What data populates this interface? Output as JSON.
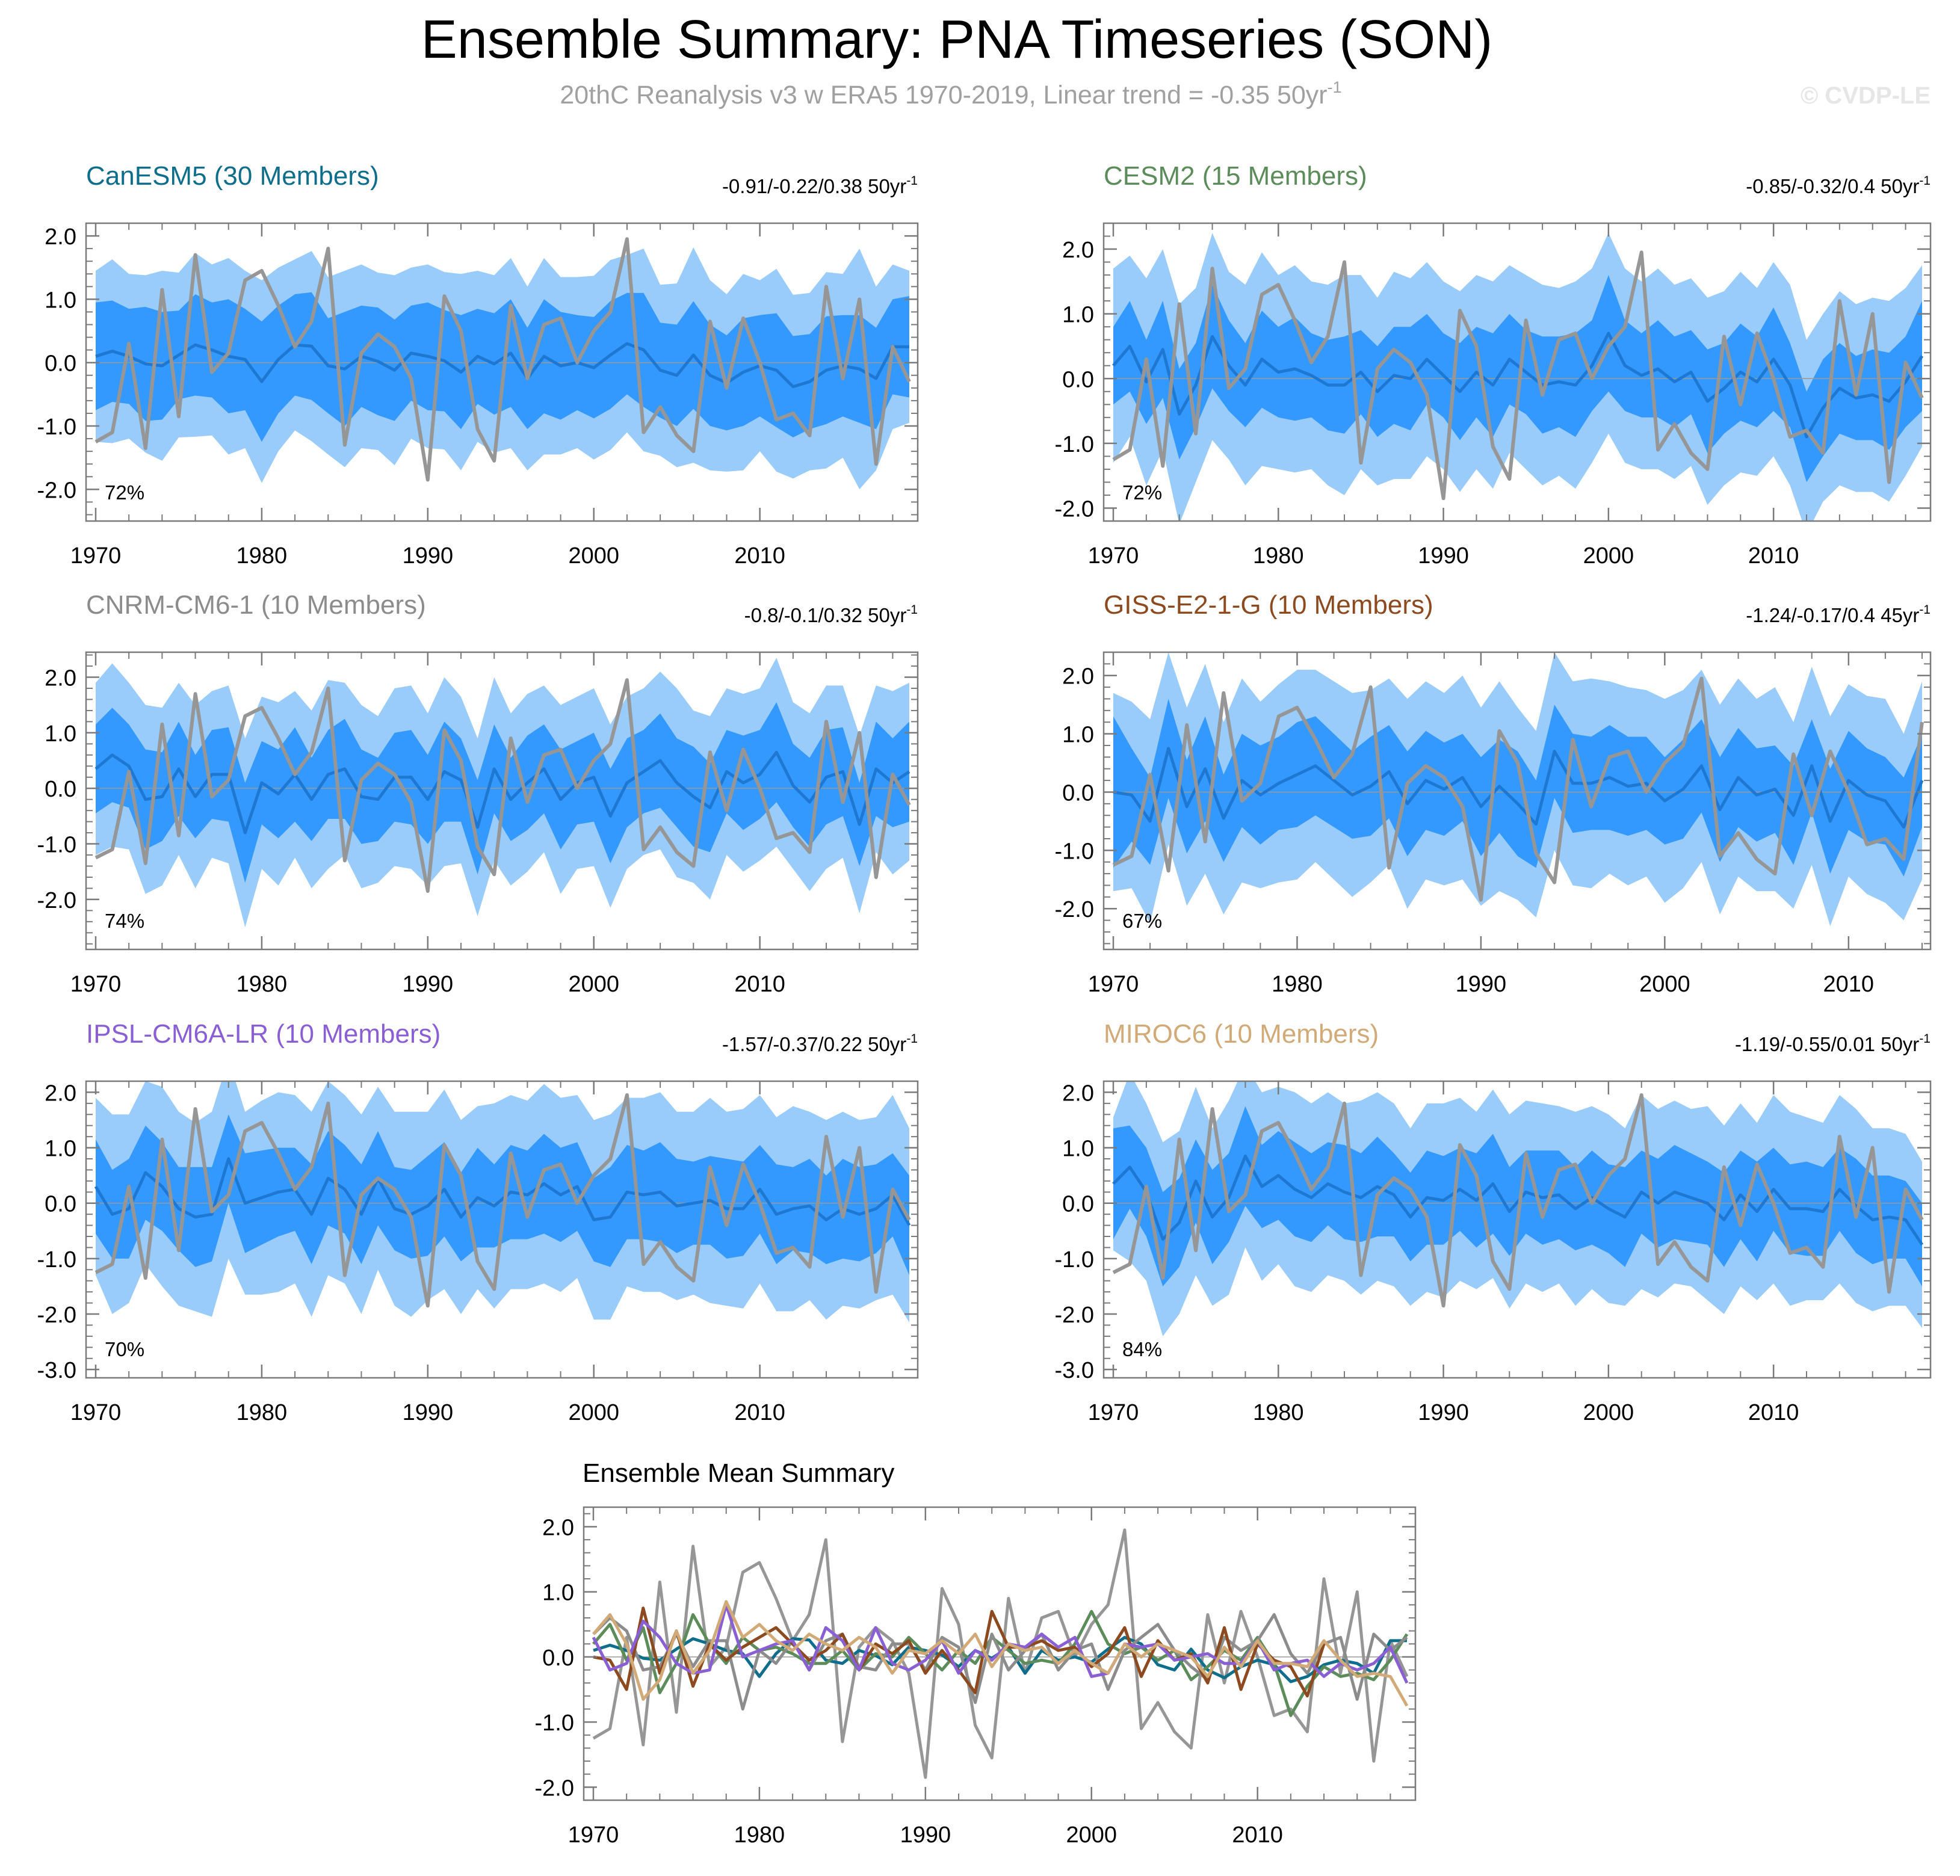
{
  "header": {
    "title": "Ensemble Summary: PNA Timeseries (SON)",
    "subtitle": "20thC Reanalysis v3 w ERA5 1970-2019, Linear trend = -0.35 50yr",
    "subtitle_sup": "-1",
    "watermark": "© CVDP-LE"
  },
  "colors": {
    "band_outer": "#99ccfa",
    "band_inner": "#3399ff",
    "ens_mean_line": "#1e78d2",
    "obs_line": "#969696",
    "zero_line": "#999999",
    "frame": "#7a7a7a"
  },
  "obs": {
    "name": "20thC Reanalysis v3 w ERA5",
    "values": [
      -1.25,
      -1.1,
      0.3,
      -1.35,
      1.15,
      -0.85,
      1.7,
      -0.15,
      0.15,
      1.3,
      1.45,
      0.9,
      0.25,
      0.65,
      1.8,
      -1.3,
      0.15,
      0.45,
      0.25,
      -0.25,
      -1.85,
      1.05,
      0.5,
      -1.05,
      -1.55,
      0.9,
      -0.25,
      0.6,
      0.7,
      0.0,
      0.5,
      0.8,
      1.95,
      -1.1,
      -0.7,
      -1.15,
      -1.4,
      0.65,
      -0.4,
      0.7,
      0.0,
      -0.9,
      -0.8,
      -1.15,
      1.2,
      -0.25,
      1.0,
      -1.6,
      0.25,
      -0.3
    ]
  },
  "chart_data": [
    {
      "type": "area",
      "model": "CanESM5",
      "title": "CanESM5 (30 Members)",
      "title_color": "#0e6e8c",
      "trend_text": "-0.91/-0.22/0.38 50yr",
      "trend_sup": "-1",
      "pct": "72%",
      "x_start": 1970,
      "x_end": 2019,
      "ylim": [
        -2.5,
        2.2
      ],
      "yticks": [
        2.0,
        1.0,
        0.0,
        -1.0,
        -2.0
      ],
      "ytick_labels": [
        "2.0",
        "1.0",
        "0.0",
        "-1.0",
        "-2.0"
      ],
      "xticks": [
        1970,
        1980,
        1990,
        2000,
        2010
      ],
      "ens_mean": [
        0.1,
        0.18,
        0.1,
        -0.02,
        -0.05,
        0.12,
        0.28,
        0.2,
        0.1,
        0.05,
        -0.3,
        0.05,
        0.28,
        0.26,
        -0.05,
        -0.1,
        0.1,
        0.02,
        -0.12,
        0.15,
        0.1,
        0.03,
        -0.15,
        0.1,
        -0.02,
        0.15,
        -0.25,
        0.1,
        -0.05,
        0.0,
        -0.08,
        0.12,
        0.3,
        0.2,
        -0.12,
        -0.2,
        0.12,
        -0.2,
        -0.32,
        -0.15,
        -0.05,
        -0.12,
        -0.38,
        -0.3,
        -0.12,
        -0.05,
        -0.1,
        -0.25,
        0.25,
        0.25
      ],
      "band_inner_halfwidth": [
        0.85,
        0.8,
        0.75,
        0.9,
        0.85,
        0.7,
        0.8,
        0.75,
        0.9,
        0.8,
        0.95,
        0.85,
        0.8,
        0.85,
        0.75,
        0.9,
        0.8,
        0.85,
        0.8,
        0.75,
        0.85,
        0.8,
        0.9,
        0.75,
        0.8,
        0.85,
        0.8,
        0.9,
        0.85,
        0.75,
        0.8,
        0.85,
        0.8,
        0.9,
        0.75,
        0.8,
        0.85,
        0.8,
        0.75,
        0.85,
        0.8,
        0.9,
        0.8,
        0.75,
        0.85,
        0.8,
        0.85,
        0.8,
        0.75,
        0.8
      ],
      "band_outer_halfwidth": [
        1.35,
        1.45,
        1.3,
        1.4,
        1.5,
        1.3,
        1.45,
        1.35,
        1.55,
        1.4,
        1.6,
        1.45,
        1.35,
        1.5,
        1.4,
        1.55,
        1.45,
        1.4,
        1.5,
        1.35,
        1.45,
        1.4,
        1.55,
        1.35,
        1.4,
        1.5,
        1.45,
        1.55,
        1.4,
        1.35,
        1.45,
        1.5,
        1.4,
        1.6,
        1.35,
        1.45,
        1.7,
        1.5,
        1.4,
        1.55,
        1.35,
        1.6,
        1.45,
        1.4,
        1.55,
        1.45,
        1.9,
        1.45,
        1.3,
        1.2
      ]
    },
    {
      "type": "area",
      "model": "CESM2",
      "title": "CESM2 (15 Members)",
      "title_color": "#5b8c5a",
      "trend_text": "-0.85/-0.32/0.4 50yr",
      "trend_sup": "-1",
      "pct": "72%",
      "x_start": 1970,
      "x_end": 2019,
      "ylim": [
        -2.2,
        2.4
      ],
      "yticks": [
        2.0,
        1.0,
        0.0,
        -1.0,
        -2.0
      ],
      "ytick_labels": [
        "2.0",
        "1.0",
        "0.0",
        "-1.0",
        "-2.0"
      ],
      "xticks": [
        1970,
        1980,
        1990,
        2000,
        2010
      ],
      "ens_mean": [
        0.2,
        0.5,
        -0.05,
        0.45,
        -0.55,
        -0.1,
        0.65,
        0.2,
        -0.1,
        0.3,
        0.1,
        0.15,
        0.05,
        -0.1,
        -0.1,
        0.1,
        -0.2,
        0.05,
        0.0,
        0.3,
        0.05,
        -0.2,
        0.1,
        -0.1,
        0.3,
        0.1,
        -0.1,
        -0.05,
        -0.1,
        0.2,
        0.7,
        0.2,
        0.05,
        0.15,
        -0.05,
        0.1,
        -0.35,
        -0.15,
        0.1,
        -0.05,
        0.3,
        -0.1,
        -0.9,
        -0.45,
        -0.15,
        -0.3,
        -0.25,
        -0.35,
        -0.05,
        0.35
      ],
      "band_inner_halfwidth": [
        0.6,
        0.7,
        0.65,
        0.75,
        0.7,
        0.65,
        0.8,
        0.7,
        0.65,
        0.75,
        0.7,
        0.8,
        0.65,
        0.7,
        0.75,
        0.65,
        0.7,
        0.75,
        0.8,
        0.7,
        0.65,
        0.75,
        0.7,
        0.8,
        0.7,
        0.65,
        0.75,
        0.7,
        0.8,
        0.7,
        0.9,
        0.7,
        0.65,
        0.75,
        0.7,
        0.65,
        0.8,
        0.7,
        0.75,
        0.7,
        0.8,
        0.65,
        0.7,
        0.75,
        0.7,
        0.65,
        0.7,
        0.75,
        0.7,
        0.85
      ],
      "band_outer_halfwidth": [
        1.5,
        1.4,
        1.6,
        1.55,
        1.7,
        1.5,
        1.6,
        1.45,
        1.55,
        1.65,
        1.5,
        1.6,
        1.45,
        1.55,
        1.7,
        1.5,
        1.45,
        1.6,
        1.55,
        1.5,
        1.45,
        1.55,
        1.5,
        1.6,
        1.45,
        1.5,
        1.55,
        1.45,
        1.6,
        1.5,
        1.55,
        1.5,
        1.45,
        1.55,
        1.5,
        1.45,
        1.6,
        1.5,
        1.55,
        1.45,
        1.5,
        1.55,
        1.5,
        1.45,
        1.5,
        1.45,
        1.5,
        1.55,
        1.45,
        1.4
      ]
    },
    {
      "type": "area",
      "model": "CNRM-CM6-1",
      "title": "CNRM-CM6-1 (10 Members)",
      "title_color": "#8c8c8c",
      "trend_text": "-0.8/-0.1/0.32 50yr",
      "trend_sup": "-1",
      "pct": "74%",
      "x_start": 1970,
      "x_end": 2019,
      "ylim": [
        -2.9,
        2.45
      ],
      "yticks": [
        2.0,
        1.0,
        0.0,
        -1.0,
        -2.0
      ],
      "ytick_labels": [
        "2.0",
        "1.0",
        "0.0",
        "-1.0",
        "-2.0"
      ],
      "xticks": [
        1970,
        1980,
        1990,
        2000,
        2010
      ],
      "ens_mean": [
        0.35,
        0.6,
        0.4,
        -0.2,
        -0.15,
        0.35,
        -0.15,
        0.25,
        0.25,
        -0.8,
        0.1,
        -0.1,
        0.25,
        -0.2,
        0.25,
        0.35,
        -0.15,
        -0.2,
        0.2,
        0.2,
        -0.2,
        0.3,
        0.15,
        -0.7,
        0.35,
        -0.2,
        0.1,
        0.35,
        -0.2,
        0.1,
        0.2,
        -0.5,
        0.1,
        0.3,
        0.5,
        0.1,
        -0.15,
        -0.35,
        0.3,
        0.1,
        0.25,
        0.65,
        0.05,
        -0.25,
        0.2,
        0.3,
        -0.65,
        0.35,
        0.1,
        0.3
      ],
      "band_inner_halfwidth": [
        0.8,
        0.85,
        0.75,
        0.9,
        0.8,
        0.85,
        0.75,
        0.8,
        0.85,
        0.9,
        0.75,
        0.8,
        0.85,
        0.75,
        0.8,
        0.9,
        0.85,
        0.75,
        0.8,
        0.85,
        0.8,
        0.9,
        0.75,
        0.85,
        0.8,
        0.75,
        0.85,
        0.8,
        0.9,
        0.75,
        0.8,
        0.85,
        0.8,
        0.75,
        0.85,
        0.8,
        0.9,
        0.8,
        0.75,
        0.85,
        0.8,
        0.9,
        0.75,
        0.8,
        0.85,
        0.8,
        0.75,
        0.85,
        0.8,
        0.9
      ],
      "band_outer_halfwidth": [
        1.55,
        1.65,
        1.5,
        1.7,
        1.6,
        1.55,
        1.65,
        1.5,
        1.6,
        1.7,
        1.55,
        1.65,
        1.5,
        1.6,
        1.7,
        1.55,
        1.65,
        1.5,
        1.6,
        1.65,
        1.55,
        1.7,
        1.5,
        1.6,
        1.65,
        1.55,
        1.6,
        1.5,
        1.7,
        1.55,
        1.6,
        1.65,
        1.55,
        1.5,
        1.6,
        1.7,
        1.55,
        1.65,
        1.5,
        1.6,
        1.55,
        1.7,
        1.5,
        1.6,
        1.65,
        1.55,
        1.6,
        1.5,
        1.65,
        1.6
      ]
    },
    {
      "type": "area",
      "model": "GISS-E2-1-G",
      "title": "GISS-E2-1-G (10 Members)",
      "title_color": "#8c4a1e",
      "trend_text": "-1.24/-0.17/0.4 45yr",
      "trend_sup": "-1",
      "pct": "67%",
      "x_start": 1970,
      "x_end": 2014,
      "ylim": [
        -2.7,
        2.4
      ],
      "yticks": [
        2.0,
        1.0,
        0.0,
        -1.0,
        -2.0
      ],
      "ytick_labels": [
        "2.0",
        "1.0",
        "0.0",
        "-1.0",
        "-2.0"
      ],
      "xticks": [
        1970,
        1980,
        1990,
        2000,
        2010
      ],
      "ens_mean": [
        0.0,
        -0.05,
        -0.5,
        0.75,
        -0.25,
        0.4,
        -0.45,
        0.2,
        -0.05,
        0.15,
        0.3,
        0.45,
        0.2,
        -0.05,
        0.1,
        0.35,
        -0.2,
        0.2,
        0.05,
        0.25,
        -0.25,
        0.1,
        -0.2,
        -0.55,
        0.7,
        0.15,
        0.15,
        0.25,
        0.1,
        0.15,
        -0.15,
        0.05,
        0.45,
        -0.3,
        0.25,
        -0.05,
        0.05,
        -0.4,
        0.45,
        -0.5,
        0.2,
        -0.05,
        -0.15,
        -0.6,
        0.2
      ],
      "band_inner_halfwidth": [
        1.3,
        0.8,
        0.75,
        0.85,
        0.8,
        0.9,
        0.75,
        0.8,
        0.85,
        0.8,
        0.9,
        0.85,
        0.8,
        0.75,
        0.85,
        0.8,
        0.9,
        0.85,
        0.8,
        0.75,
        0.85,
        0.8,
        0.9,
        0.75,
        0.8,
        0.85,
        0.8,
        0.9,
        0.85,
        0.8,
        0.75,
        0.85,
        0.8,
        0.9,
        0.85,
        0.8,
        0.75,
        0.85,
        0.8,
        0.9,
        0.85,
        0.8,
        0.75,
        0.85,
        0.8
      ],
      "band_outer_halfwidth": [
        1.7,
        1.6,
        1.75,
        1.65,
        1.7,
        1.8,
        1.65,
        1.75,
        1.6,
        1.7,
        1.8,
        1.65,
        1.7,
        1.75,
        1.65,
        1.6,
        1.8,
        1.7,
        1.65,
        1.75,
        1.7,
        1.8,
        1.65,
        1.6,
        1.7,
        1.75,
        1.8,
        1.65,
        1.7,
        1.6,
        1.75,
        1.7,
        1.65,
        1.8,
        1.7,
        1.65,
        1.75,
        1.6,
        1.7,
        1.8,
        1.65,
        1.7,
        1.75,
        1.6,
        1.7
      ]
    },
    {
      "type": "area",
      "model": "IPSL-CM6A-LR",
      "title": "IPSL-CM6A-LR (10 Members)",
      "title_color": "#8a5fd4",
      "trend_text": "-1.57/-0.37/0.22 50yr",
      "trend_sup": "-1",
      "pct": "70%",
      "x_start": 1970,
      "x_end": 2019,
      "ylim": [
        -3.15,
        2.2
      ],
      "yticks": [
        2.0,
        1.0,
        0.0,
        -1.0,
        -2.0,
        -3.0
      ],
      "ytick_labels": [
        "2.0",
        "1.0",
        "0.0",
        "-1.0",
        "-2.0",
        "-3.0"
      ],
      "xticks": [
        1970,
        1980,
        1990,
        2000,
        2010
      ],
      "ens_mean": [
        0.3,
        -0.2,
        -0.1,
        0.55,
        0.3,
        -0.1,
        -0.25,
        -0.2,
        0.8,
        0.0,
        0.1,
        0.2,
        0.25,
        -0.2,
        0.45,
        0.25,
        -0.2,
        0.45,
        -0.1,
        -0.2,
        -0.05,
        0.25,
        -0.25,
        0.1,
        -0.05,
        0.2,
        0.15,
        0.35,
        0.15,
        0.3,
        -0.3,
        -0.25,
        0.2,
        0.15,
        0.2,
        -0.05,
        0.0,
        0.05,
        -0.1,
        -0.1,
        0.25,
        -0.2,
        -0.1,
        -0.05,
        -0.3,
        -0.1,
        -0.2,
        -0.1,
        0.15,
        -0.4
      ],
      "band_inner_halfwidth": [
        0.85,
        0.8,
        0.9,
        0.85,
        0.8,
        0.75,
        0.9,
        0.85,
        0.8,
        0.9,
        0.85,
        0.8,
        0.75,
        0.9,
        0.85,
        0.8,
        0.9,
        0.85,
        0.75,
        0.8,
        0.9,
        0.85,
        0.8,
        0.9,
        0.75,
        0.85,
        0.8,
        0.9,
        0.85,
        0.8,
        0.75,
        0.9,
        0.85,
        0.8,
        0.9,
        0.85,
        0.75,
        0.8,
        0.9,
        0.85,
        0.8,
        0.9,
        0.75,
        0.85,
        0.8,
        0.9,
        0.85,
        0.8,
        0.75,
        0.9
      ],
      "band_outer_halfwidth": [
        1.6,
        1.8,
        1.7,
        1.65,
        1.8,
        1.75,
        1.7,
        1.85,
        1.8,
        1.65,
        1.75,
        1.8,
        1.7,
        1.85,
        1.75,
        1.7,
        1.8,
        1.65,
        1.75,
        1.85,
        1.7,
        1.8,
        1.75,
        1.65,
        1.85,
        1.75,
        1.7,
        1.8,
        1.75,
        1.65,
        1.8,
        1.85,
        1.7,
        1.75,
        1.8,
        1.7,
        1.65,
        1.85,
        1.75,
        1.8,
        1.7,
        1.75,
        1.85,
        1.7,
        1.8,
        1.75,
        1.7,
        1.65,
        1.8,
        1.75
      ]
    },
    {
      "type": "area",
      "model": "MIROC6",
      "title": "MIROC6 (10 Members)",
      "title_color": "#d2aa78",
      "trend_text": "-1.19/-0.55/0.01 50yr",
      "trend_sup": "-1",
      "pct": "84%",
      "x_start": 1970,
      "x_end": 2019,
      "ylim": [
        -3.15,
        2.2
      ],
      "yticks": [
        2.0,
        1.0,
        0.0,
        -1.0,
        -2.0,
        -3.0
      ],
      "ytick_labels": [
        "2.0",
        "1.0",
        "0.0",
        "-1.0",
        "-2.0",
        "-3.0"
      ],
      "xticks": [
        1970,
        1980,
        1990,
        2000,
        2010
      ],
      "ens_mean": [
        0.35,
        0.65,
        0.2,
        -0.65,
        -0.35,
        0.4,
        -0.25,
        0.1,
        0.85,
        0.3,
        0.5,
        0.25,
        0.1,
        0.35,
        0.2,
        0.1,
        0.3,
        0.15,
        -0.25,
        0.1,
        0.05,
        0.25,
        0.05,
        0.35,
        -0.15,
        0.2,
        0.1,
        0.15,
        -0.1,
        0.1,
        -0.1,
        -0.25,
        0.2,
        0.0,
        0.2,
        0.1,
        0.0,
        -0.3,
        0.15,
        -0.15,
        0.25,
        -0.1,
        -0.1,
        -0.15,
        0.25,
        -0.05,
        -0.3,
        -0.25,
        -0.3,
        -0.75
      ],
      "band_inner_halfwidth": [
        1.0,
        0.75,
        0.8,
        0.85,
        0.8,
        0.75,
        0.85,
        0.8,
        0.9,
        0.75,
        0.8,
        0.85,
        0.8,
        0.75,
        0.85,
        0.8,
        0.9,
        0.75,
        0.8,
        0.85,
        0.8,
        0.75,
        0.85,
        0.9,
        0.8,
        0.75,
        0.85,
        0.8,
        0.75,
        0.85,
        0.8,
        0.9,
        0.75,
        0.8,
        0.85,
        0.8,
        0.75,
        0.85,
        0.8,
        0.9,
        0.75,
        0.8,
        0.85,
        0.8,
        0.75,
        0.85,
        0.8,
        0.75,
        0.7,
        0.75
      ],
      "band_outer_halfwidth": [
        1.2,
        1.7,
        1.6,
        1.75,
        1.65,
        1.7,
        1.6,
        1.75,
        1.65,
        1.7,
        1.6,
        1.75,
        1.7,
        1.65,
        1.6,
        1.75,
        1.7,
        1.65,
        1.6,
        1.7,
        1.75,
        1.65,
        1.6,
        1.7,
        1.75,
        1.65,
        1.7,
        1.6,
        1.75,
        1.65,
        1.7,
        1.6,
        1.75,
        1.7,
        1.65,
        1.6,
        1.75,
        1.7,
        1.65,
        1.6,
        1.7,
        1.75,
        1.65,
        1.6,
        1.7,
        1.75,
        1.65,
        1.6,
        1.55,
        1.5
      ]
    },
    {
      "type": "line",
      "model": "summary",
      "title": "Ensemble Mean Summary",
      "x_start": 1970,
      "ylim": [
        -2.2,
        2.3
      ],
      "yticks": [
        2.0,
        1.0,
        0.0,
        -1.0,
        -2.0
      ],
      "ytick_labels": [
        "2.0",
        "1.0",
        "0.0",
        "-1.0",
        "-2.0"
      ],
      "xticks": [
        1970,
        1980,
        1990,
        2000,
        2010
      ],
      "series_refs": [
        "CanESM5",
        "CESM2",
        "CNRM-CM6-1",
        "GISS-E2-1-G",
        "IPSL-CM6A-LR",
        "MIROC6"
      ],
      "series_colors": [
        "#0e6e8c",
        "#5b8c5a",
        "#8c8c8c",
        "#8c4a1e",
        "#8a5fd4",
        "#d2aa78"
      ]
    }
  ]
}
